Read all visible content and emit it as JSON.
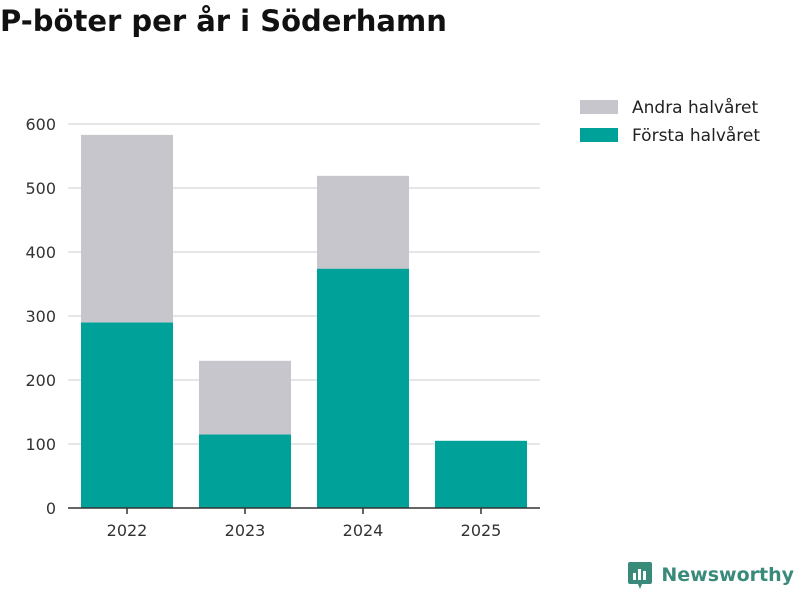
{
  "title": "P-böter per år i Söderhamn",
  "brand": {
    "name": "Newsworthy",
    "icon": "newsworthy-logo-icon"
  },
  "colors": {
    "first_half": "#00a199",
    "second_half": "#c6c6cc",
    "grid": "#dddddd",
    "axis": "#333333"
  },
  "chart_data": {
    "type": "bar",
    "stacked": true,
    "title": "P-böter per år i Söderhamn",
    "categories": [
      "2022",
      "2023",
      "2024",
      "2025"
    ],
    "series": [
      {
        "name": "Första halvåret",
        "values": [
          290,
          115,
          374,
          105
        ]
      },
      {
        "name": "Andra halvåret",
        "values": [
          293,
          115,
          145,
          0
        ]
      }
    ],
    "legend_order": [
      "Andra halvåret",
      "Första halvåret"
    ],
    "legend_position": "top-right",
    "xlabel": "",
    "ylabel": "",
    "ylim": [
      0,
      600
    ],
    "yticks": [
      0,
      100,
      200,
      300,
      400,
      500,
      600
    ],
    "grid": true
  }
}
